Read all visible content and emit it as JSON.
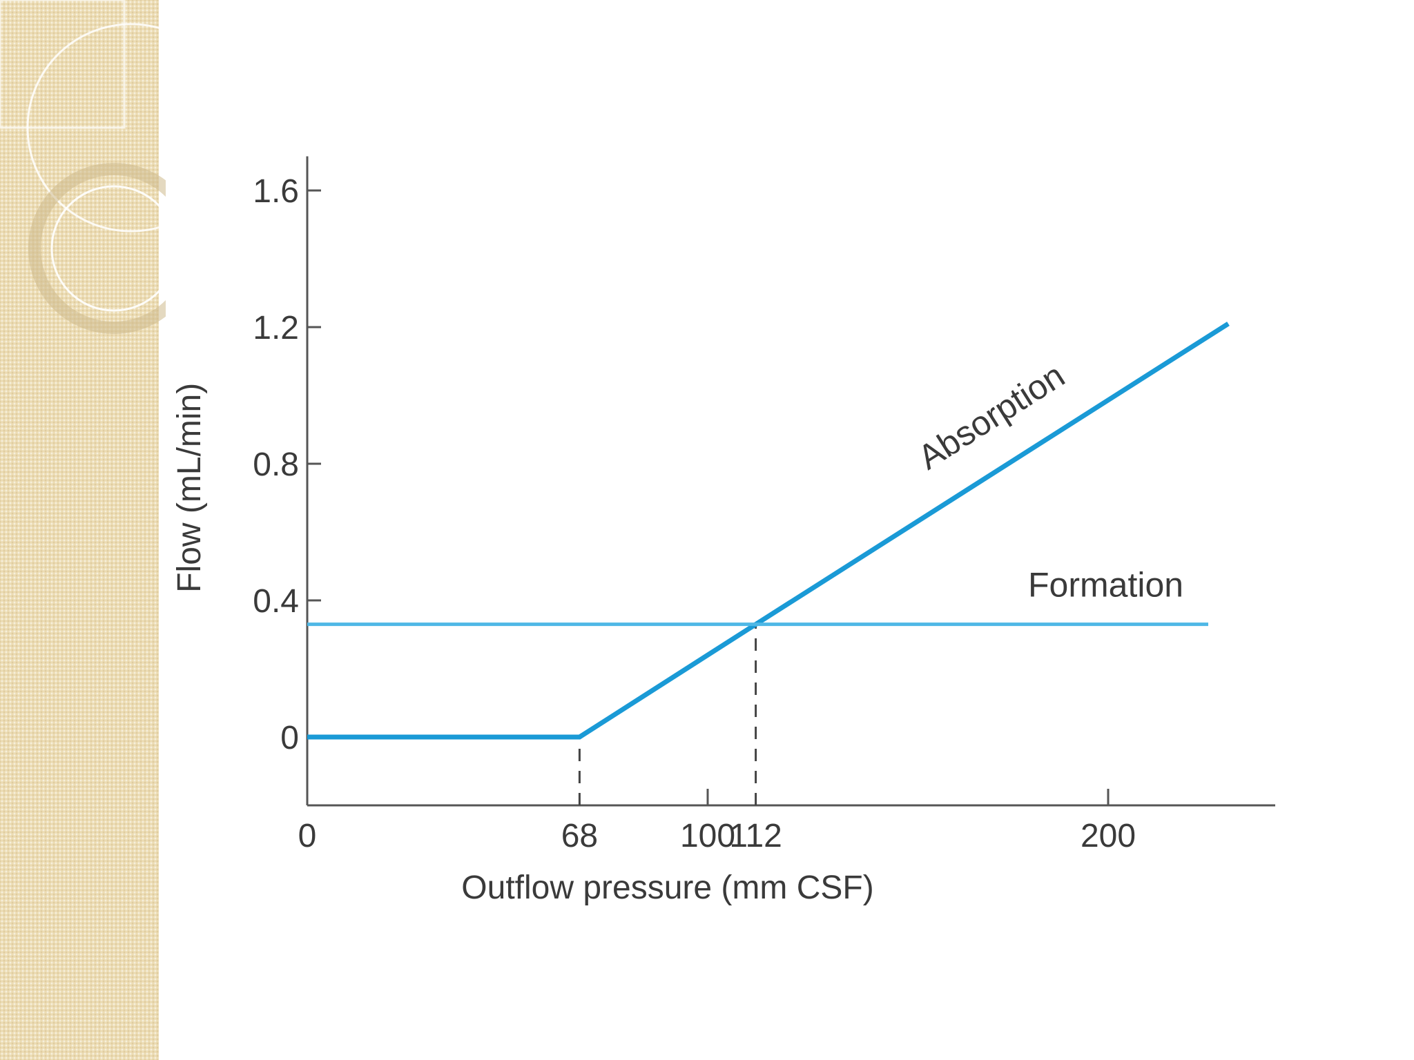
{
  "chart_data": {
    "type": "line",
    "title": "",
    "xlabel": "Outflow pressure (mm CSF)",
    "ylabel": "Flow (mL/min)",
    "xlim": [
      0,
      240
    ],
    "ylim": [
      -0.2,
      1.7
    ],
    "x_ticks": [
      {
        "value": 0,
        "label": "0"
      },
      {
        "value": 68,
        "label": "68"
      },
      {
        "value": 100,
        "label": "100"
      },
      {
        "value": 112,
        "label": "112"
      },
      {
        "value": 200,
        "label": "200"
      }
    ],
    "y_ticks": [
      {
        "value": 0,
        "label": "0"
      },
      {
        "value": 0.4,
        "label": "0.4"
      },
      {
        "value": 0.8,
        "label": "0.8"
      },
      {
        "value": 1.2,
        "label": "1.2"
      },
      {
        "value": 1.6,
        "label": "1.6"
      }
    ],
    "grid": false,
    "legend": "none",
    "series": [
      {
        "name": "Absorption",
        "x": [
          0,
          68,
          112,
          230
        ],
        "y": [
          0,
          0,
          0.33,
          1.21
        ],
        "color": "#1a9ad6"
      },
      {
        "name": "Formation",
        "x": [
          0,
          225
        ],
        "y": [
          0.33,
          0.33
        ],
        "color": "#4fb8e6"
      }
    ],
    "reference_lines": [
      {
        "x": 68,
        "y_from": -0.2,
        "y_to": 0,
        "style": "dashed"
      },
      {
        "x": 112,
        "y_from": -0.2,
        "y_to": 0.33,
        "style": "dashed"
      }
    ]
  }
}
